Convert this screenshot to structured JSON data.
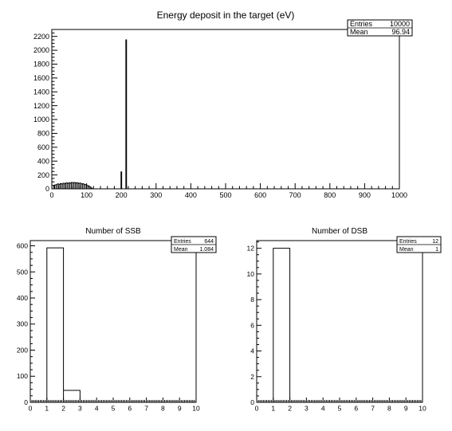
{
  "chart_data": [
    {
      "type": "histogram",
      "title": "Energy deposit in the target (eV)",
      "xlim": [
        0,
        1000
      ],
      "ylim": [
        0,
        2300
      ],
      "x_ticks": [
        0,
        100,
        200,
        300,
        400,
        500,
        600,
        700,
        800,
        900,
        1000
      ],
      "y_ticks": [
        0,
        200,
        400,
        600,
        800,
        1000,
        1200,
        1400,
        1600,
        1800,
        2000,
        2200
      ],
      "grid": false,
      "stats_box": {
        "position": "top-right",
        "rows": [
          {
            "label": "Entries",
            "value": "10000"
          },
          {
            "label": "Mean",
            "value": "96.94"
          }
        ]
      },
      "bins": [
        {
          "x0": 5,
          "x1": 8,
          "y": 45
        },
        {
          "x0": 8,
          "x1": 12,
          "y": 55
        },
        {
          "x0": 12,
          "x1": 16,
          "y": 60
        },
        {
          "x0": 16,
          "x1": 20,
          "y": 70
        },
        {
          "x0": 20,
          "x1": 24,
          "y": 62
        },
        {
          "x0": 24,
          "x1": 28,
          "y": 75
        },
        {
          "x0": 28,
          "x1": 32,
          "y": 68
        },
        {
          "x0": 32,
          "x1": 36,
          "y": 80
        },
        {
          "x0": 36,
          "x1": 40,
          "y": 72
        },
        {
          "x0": 40,
          "x1": 44,
          "y": 85
        },
        {
          "x0": 44,
          "x1": 48,
          "y": 76
        },
        {
          "x0": 48,
          "x1": 52,
          "y": 88
        },
        {
          "x0": 52,
          "x1": 56,
          "y": 80
        },
        {
          "x0": 56,
          "x1": 60,
          "y": 92
        },
        {
          "x0": 60,
          "x1": 64,
          "y": 84
        },
        {
          "x0": 64,
          "x1": 68,
          "y": 90
        },
        {
          "x0": 68,
          "x1": 72,
          "y": 82
        },
        {
          "x0": 72,
          "x1": 76,
          "y": 88
        },
        {
          "x0": 76,
          "x1": 80,
          "y": 76
        },
        {
          "x0": 80,
          "x1": 84,
          "y": 82
        },
        {
          "x0": 84,
          "x1": 88,
          "y": 70
        },
        {
          "x0": 88,
          "x1": 92,
          "y": 74
        },
        {
          "x0": 92,
          "x1": 96,
          "y": 62
        },
        {
          "x0": 96,
          "x1": 100,
          "y": 60
        },
        {
          "x0": 100,
          "x1": 104,
          "y": 48
        },
        {
          "x0": 104,
          "x1": 108,
          "y": 40
        },
        {
          "x0": 108,
          "x1": 112,
          "y": 28
        },
        {
          "x0": 112,
          "x1": 116,
          "y": 12
        },
        {
          "x0": 199,
          "x1": 201,
          "y": 245
        },
        {
          "x0": 213,
          "x1": 215,
          "y": 2150
        }
      ]
    },
    {
      "type": "histogram",
      "title": "Number of SSB",
      "xlim": [
        0,
        10
      ],
      "ylim": [
        0,
        620
      ],
      "x_ticks": [
        0,
        1,
        2,
        3,
        4,
        5,
        6,
        7,
        8,
        9,
        10
      ],
      "y_ticks": [
        0,
        100,
        200,
        300,
        400,
        500,
        600
      ],
      "grid": false,
      "stats_box": {
        "position": "top-right",
        "rows": [
          {
            "label": "Entries",
            "value": "644"
          },
          {
            "label": "Mean",
            "value": "1.084"
          }
        ]
      },
      "bins": [
        {
          "x0": 1,
          "x1": 2,
          "y": 592
        },
        {
          "x0": 2,
          "x1": 3,
          "y": 46
        }
      ]
    },
    {
      "type": "histogram",
      "title": "Number of DSB",
      "xlim": [
        0,
        10
      ],
      "ylim": [
        0,
        12.6
      ],
      "x_ticks": [
        0,
        1,
        2,
        3,
        4,
        5,
        6,
        7,
        8,
        9,
        10
      ],
      "y_ticks": [
        0,
        2,
        4,
        6,
        8,
        10,
        12
      ],
      "grid": false,
      "stats_box": {
        "position": "top-right",
        "rows": [
          {
            "label": "Entries",
            "value": "12"
          },
          {
            "label": "Mean",
            "value": "1"
          }
        ]
      },
      "bins": [
        {
          "x0": 1,
          "x1": 2,
          "y": 12
        }
      ]
    }
  ]
}
